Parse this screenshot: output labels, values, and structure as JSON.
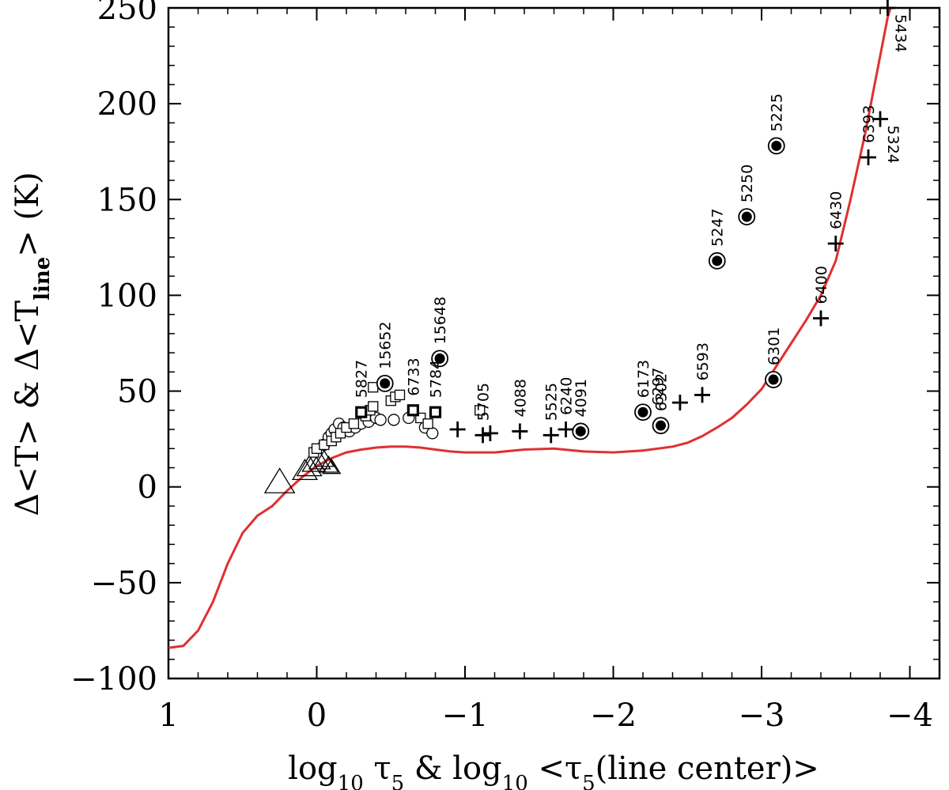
{
  "chart_data": {
    "type": "scatter",
    "title": "",
    "xlabel": "log₁₀ τ₅ & log₁₀ <τ₅(line center)>",
    "ylabel": "Δ<T> & Δ<T_line> (K)",
    "xlabel_parts": {
      "p1": "log",
      "s1": "10",
      "p2": " τ",
      "s2": "5",
      "p3": " & log",
      "s3": "10",
      "p4": " <τ",
      "s4": "5",
      "p5": "(line center)>"
    },
    "ylabel_parts": {
      "p1": "Δ<T> & Δ<T",
      "s1": "line",
      "p2": "> (K)"
    },
    "xlim": [
      1,
      -4.2
    ],
    "ylim": [
      -100,
      250
    ],
    "x_reversed": true,
    "grid": false,
    "legend": "none",
    "x_ticks": [
      1,
      0,
      -1,
      -2,
      -3,
      -4
    ],
    "x_tick_labels": [
      "1",
      "0",
      "−1",
      "−2",
      "−3",
      "−4"
    ],
    "y_ticks": [
      -100,
      -50,
      0,
      50,
      100,
      150,
      200,
      250
    ],
    "y_tick_labels": [
      "−100",
      "−50",
      "0",
      "50",
      "100",
      "150",
      "200",
      "250"
    ],
    "curve": {
      "color": "#e03030",
      "x": [
        1.0,
        0.9,
        0.8,
        0.7,
        0.6,
        0.5,
        0.4,
        0.3,
        0.2,
        0.1,
        0.0,
        -0.1,
        -0.2,
        -0.3,
        -0.4,
        -0.5,
        -0.6,
        -0.7,
        -0.8,
        -0.9,
        -1.0,
        -1.2,
        -1.4,
        -1.6,
        -1.8,
        -2.0,
        -2.2,
        -2.4,
        -2.5,
        -2.6,
        -2.7,
        -2.8,
        -2.9,
        -3.0,
        -3.1,
        -3.2,
        -3.3,
        -3.4,
        -3.5,
        -3.6,
        -3.7,
        -3.75,
        -3.8,
        -3.85,
        -3.9
      ],
      "y": [
        -84,
        -83,
        -75,
        -60,
        -40,
        -24,
        -15,
        -10,
        -2,
        5,
        11,
        15,
        18,
        19.5,
        20.5,
        21,
        21,
        20.5,
        19.5,
        18.5,
        18,
        18,
        19.5,
        20,
        18.5,
        18,
        19,
        21,
        23,
        26.5,
        31,
        36,
        43,
        51,
        63,
        75,
        87,
        100,
        118,
        150,
        185,
        205,
        225,
        245,
        258
      ]
    },
    "plus_points": [
      {
        "x": -0.95,
        "y": 30,
        "label": ""
      },
      {
        "x": -1.12,
        "y": 27,
        "label": "5705"
      },
      {
        "x": -1.17,
        "y": 28,
        "label": ""
      },
      {
        "x": -1.37,
        "y": 29,
        "label": "4088"
      },
      {
        "x": -1.58,
        "y": 27,
        "label": "5525"
      },
      {
        "x": -1.68,
        "y": 30,
        "label": "6240"
      },
      {
        "x": -2.45,
        "y": 44,
        "label": ""
      },
      {
        "x": -2.6,
        "y": 48,
        "label": "6593"
      },
      {
        "x": -3.4,
        "y": 88,
        "label": "6400"
      },
      {
        "x": -3.5,
        "y": 127,
        "label": "6430"
      },
      {
        "x": -3.72,
        "y": 172,
        "label": "6393"
      },
      {
        "x": -3.8,
        "y": 192,
        "label": "5324"
      },
      {
        "x": -3.85,
        "y": 250,
        "label": "5434"
      }
    ],
    "filled_circle_points": [
      {
        "x": -0.46,
        "y": 54,
        "label": "15652"
      },
      {
        "x": -0.83,
        "y": 67,
        "label": "15648"
      },
      {
        "x": -1.78,
        "y": 29,
        "label": "4091"
      },
      {
        "x": -2.2,
        "y": 39,
        "label": "6173"
      },
      {
        "x": -2.32,
        "y": 32,
        "label": "6302"
      },
      {
        "x": -2.7,
        "y": 118,
        "label": "5247"
      },
      {
        "x": -2.9,
        "y": 141,
        "label": "5250"
      },
      {
        "x": -3.08,
        "y": 56,
        "label": "6301"
      },
      {
        "x": -3.1,
        "y": 178,
        "label": "5225"
      }
    ],
    "bold_square_points": [
      {
        "x": -0.3,
        "y": 39,
        "label": "5827"
      },
      {
        "x": -0.65,
        "y": 40,
        "label": "6733"
      },
      {
        "x": -0.8,
        "y": 39,
        "label": "5784"
      }
    ],
    "extra_labels": [
      {
        "x": -2.3,
        "y": 35,
        "label": "6297"
      }
    ],
    "open_square_points": [
      {
        "x": 0.02,
        "y": 18
      },
      {
        "x": 0.0,
        "y": 20
      },
      {
        "x": -0.05,
        "y": 22
      },
      {
        "x": -0.1,
        "y": 24
      },
      {
        "x": -0.13,
        "y": 26
      },
      {
        "x": -0.16,
        "y": 28
      },
      {
        "x": -0.2,
        "y": 31
      },
      {
        "x": -0.25,
        "y": 33
      },
      {
        "x": -0.33,
        "y": 37
      },
      {
        "x": -0.36,
        "y": 40
      },
      {
        "x": -0.38,
        "y": 42
      },
      {
        "x": -0.38,
        "y": 52
      },
      {
        "x": -0.5,
        "y": 45
      },
      {
        "x": -0.53,
        "y": 47
      },
      {
        "x": -0.56,
        "y": 48
      },
      {
        "x": -0.7,
        "y": 36
      },
      {
        "x": -0.75,
        "y": 33
      },
      {
        "x": -1.1,
        "y": 40
      }
    ],
    "open_circle_points": [
      {
        "x": -0.05,
        "y": 22
      },
      {
        "x": -0.08,
        "y": 26
      },
      {
        "x": -0.1,
        "y": 28
      },
      {
        "x": -0.12,
        "y": 30
      },
      {
        "x": -0.15,
        "y": 33
      },
      {
        "x": -0.18,
        "y": 31
      },
      {
        "x": -0.22,
        "y": 29
      },
      {
        "x": -0.26,
        "y": 31
      },
      {
        "x": -0.3,
        "y": 33
      },
      {
        "x": -0.35,
        "y": 34
      },
      {
        "x": -0.4,
        "y": 36
      },
      {
        "x": -0.43,
        "y": 35
      },
      {
        "x": -0.52,
        "y": 35
      },
      {
        "x": -0.62,
        "y": 36
      },
      {
        "x": -0.73,
        "y": 31
      },
      {
        "x": -0.78,
        "y": 28
      }
    ],
    "triangle_points": [
      {
        "x": 0.25,
        "y": 2,
        "size": 34
      },
      {
        "x": 0.08,
        "y": 8,
        "size": 28
      },
      {
        "x": 0.05,
        "y": 10,
        "size": 28
      },
      {
        "x": 0.02,
        "y": 12,
        "size": 26
      },
      {
        "x": -0.02,
        "y": 13,
        "size": 24
      },
      {
        "x": -0.05,
        "y": 14,
        "size": 22
      },
      {
        "x": -0.08,
        "y": 11,
        "size": 22
      },
      {
        "x": -0.1,
        "y": 10,
        "size": 20
      }
    ]
  }
}
